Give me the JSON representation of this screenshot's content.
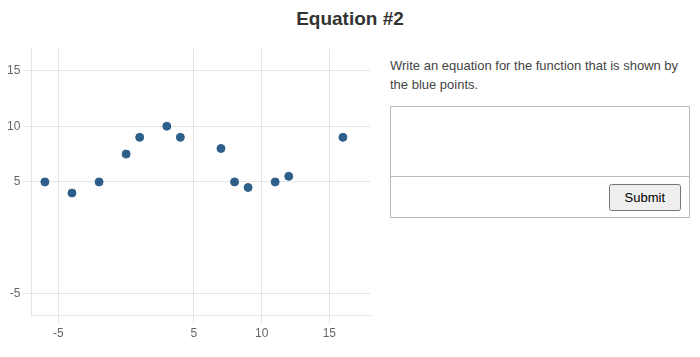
{
  "chart_data": {
    "type": "scatter",
    "title": "Equation #2",
    "annotations": [
      "Write an equation for the function that is shown by",
      "the blue points.",
      "Submit"
    ],
    "x": [
      -6,
      -4,
      -2,
      0,
      1,
      3,
      4,
      7,
      8,
      9,
      11,
      12,
      16
    ],
    "values": [
      5,
      4,
      5,
      7.5,
      9,
      10,
      9,
      8,
      5,
      4.5,
      5,
      5.5,
      9
    ],
    "color": "#2d5f8a",
    "marker": "circle",
    "xlim": [
      -7,
      18
    ],
    "ylim": [
      -7,
      17
    ],
    "xticks": [
      -5,
      5,
      10,
      15
    ],
    "yticks": [
      -5,
      5,
      10,
      15
    ],
    "grid": true
  }
}
